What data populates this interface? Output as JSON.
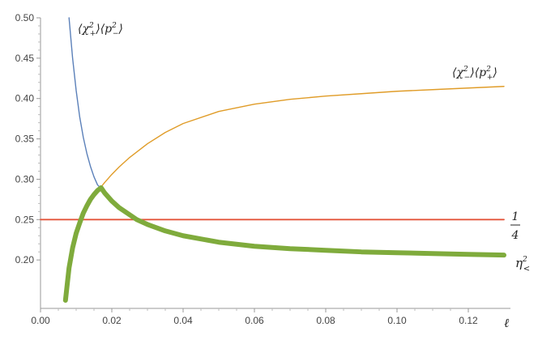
{
  "chart_data": {
    "type": "line",
    "title": "",
    "xlabel": "ℓ",
    "ylabel": "",
    "xlim": [
      0.0,
      0.13
    ],
    "ylim": [
      0.14,
      0.5
    ],
    "x_ticks": [
      "0.00",
      "0.02",
      "0.04",
      "0.06",
      "0.08",
      "0.10",
      "0.12"
    ],
    "y_ticks": [
      "0.20",
      "0.25",
      "0.30",
      "0.35",
      "0.40",
      "0.45",
      "0.50"
    ],
    "grid": false,
    "series": [
      {
        "name": "⟨χ₊²⟩⟨p₋²⟩",
        "color": "#5b80b9",
        "x": [
          0.008,
          0.009,
          0.01,
          0.011,
          0.012,
          0.013,
          0.014,
          0.015,
          0.016,
          0.017,
          0.018,
          0.02,
          0.022,
          0.025,
          0.027,
          0.03,
          0.035,
          0.04,
          0.05,
          0.06,
          0.07,
          0.08,
          0.09,
          0.1,
          0.11,
          0.12,
          0.13
        ],
        "y": [
          0.5,
          0.45,
          0.41,
          0.377,
          0.352,
          0.332,
          0.316,
          0.303,
          0.293,
          0.2885,
          0.283,
          0.273,
          0.265,
          0.256,
          0.25,
          0.244,
          0.236,
          0.23,
          0.222,
          0.217,
          0.214,
          0.212,
          0.21,
          0.209,
          0.208,
          0.207,
          0.206
        ]
      },
      {
        "name": "⟨χ₋²⟩⟨p₊²⟩",
        "color": "#e09c28",
        "x": [
          0.007,
          0.008,
          0.009,
          0.01,
          0.011,
          0.012,
          0.013,
          0.014,
          0.015,
          0.016,
          0.017,
          0.018,
          0.02,
          0.022,
          0.025,
          0.03,
          0.035,
          0.04,
          0.05,
          0.06,
          0.07,
          0.08,
          0.09,
          0.1,
          0.11,
          0.12,
          0.13
        ],
        "y": [
          0.15,
          0.19,
          0.215,
          0.233,
          0.246,
          0.258,
          0.267,
          0.275,
          0.281,
          0.286,
          0.2905,
          0.296,
          0.306,
          0.315,
          0.327,
          0.344,
          0.358,
          0.369,
          0.384,
          0.393,
          0.399,
          0.403,
          0.406,
          0.409,
          0.411,
          0.413,
          0.415
        ]
      },
      {
        "name": "1/4",
        "color": "#e4553a",
        "x": [
          0.0,
          0.13
        ],
        "y": [
          0.25,
          0.25
        ]
      },
      {
        "name": "η<²",
        "color": "#7fab3c",
        "x": [
          0.007,
          0.008,
          0.009,
          0.01,
          0.011,
          0.012,
          0.013,
          0.014,
          0.015,
          0.016,
          0.017,
          0.018,
          0.02,
          0.022,
          0.025,
          0.027,
          0.03,
          0.035,
          0.04,
          0.05,
          0.06,
          0.07,
          0.08,
          0.09,
          0.1,
          0.11,
          0.12,
          0.13
        ],
        "y": [
          0.15,
          0.19,
          0.215,
          0.233,
          0.246,
          0.258,
          0.267,
          0.275,
          0.281,
          0.286,
          0.2895,
          0.283,
          0.273,
          0.265,
          0.256,
          0.25,
          0.244,
          0.236,
          0.23,
          0.222,
          0.217,
          0.214,
          0.212,
          0.21,
          0.209,
          0.208,
          0.207,
          0.206
        ]
      }
    ]
  }
}
